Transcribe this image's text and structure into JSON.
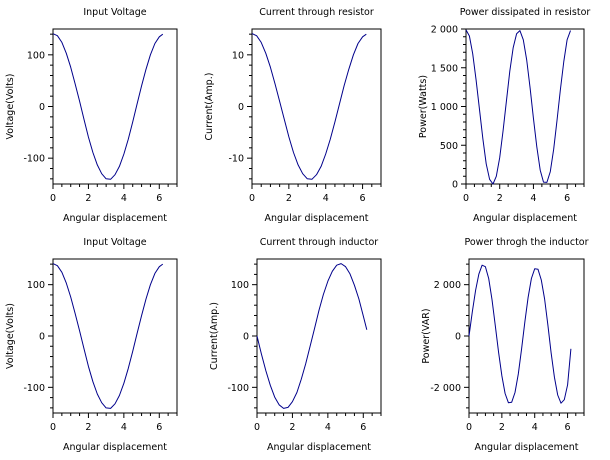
{
  "chart_data": [
    {
      "type": "line",
      "title": "Input Voltage",
      "xlabel": "Angular displacement",
      "ylabel": "Voltage(Volts)",
      "xlim": [
        0,
        7
      ],
      "ylim": [
        -150,
        150
      ],
      "xticks": [
        0,
        2,
        4,
        6
      ],
      "xtick_labels": [
        "0",
        "2",
        "4",
        "6"
      ],
      "yticks": [
        -100,
        0,
        100
      ],
      "ytick_labels": [
        "-100",
        "0",
        "100"
      ],
      "series_color": "#00008b",
      "series": [
        {
          "x": [
            0,
            0.25,
            0.5,
            0.75,
            1,
            1.25,
            1.5,
            1.75,
            2,
            2.25,
            2.5,
            2.75,
            3,
            3.25,
            3.5,
            3.75,
            4,
            4.25,
            4.5,
            4.75,
            5,
            5.25,
            5.5,
            5.75,
            6,
            6.2
          ],
          "y": [
            141,
            137,
            124,
            103,
            76,
            44,
            10,
            -25,
            -59,
            -89,
            -113,
            -130,
            -140,
            -141,
            -132,
            -116,
            -92,
            -63,
            -30,
            5,
            40,
            72,
            100,
            122,
            135,
            140
          ]
        }
      ]
    },
    {
      "type": "line",
      "title": "Current through resistor",
      "xlabel": "Angular displacement",
      "ylabel": "Current(Amp.)",
      "xlim": [
        0,
        7
      ],
      "ylim": [
        -15,
        15
      ],
      "xticks": [
        0,
        2,
        4,
        6
      ],
      "xtick_labels": [
        "0",
        "2",
        "4",
        "6"
      ],
      "yticks": [
        -10,
        0,
        10
      ],
      "ytick_labels": [
        "-10",
        "0",
        "10"
      ],
      "series_color": "#00008b",
      "series": [
        {
          "x": [
            0,
            0.25,
            0.5,
            0.75,
            1,
            1.25,
            1.5,
            1.75,
            2,
            2.25,
            2.5,
            2.75,
            3,
            3.25,
            3.5,
            3.75,
            4,
            4.25,
            4.5,
            4.75,
            5,
            5.25,
            5.5,
            5.75,
            6,
            6.2
          ],
          "y": [
            14.1,
            13.7,
            12.4,
            10.3,
            7.6,
            4.4,
            1.0,
            -2.5,
            -5.9,
            -8.9,
            -11.3,
            -13.0,
            -14.0,
            -14.1,
            -13.2,
            -11.6,
            -9.2,
            -6.3,
            -3.0,
            0.5,
            4.0,
            7.2,
            10.0,
            12.2,
            13.5,
            14.0
          ]
        }
      ]
    },
    {
      "type": "line",
      "title": "Power dissipated in resistor",
      "xlabel": "Angular displacement",
      "ylabel": "Power(Watts)",
      "xlim": [
        0,
        7
      ],
      "ylim": [
        0,
        2000
      ],
      "xticks": [
        0,
        2,
        4,
        6
      ],
      "xtick_labels": [
        "0",
        "2",
        "4",
        "6"
      ],
      "yticks": [
        0,
        500,
        1000,
        1500,
        2000
      ],
      "ytick_labels": [
        "0",
        "500",
        "1 000",
        "1 500",
        "2 000"
      ],
      "series_color": "#00008b",
      "series": [
        {
          "x": [
            0,
            0.2,
            0.4,
            0.6,
            0.8,
            1.0,
            1.2,
            1.4,
            1.6,
            1.8,
            2.0,
            2.2,
            2.4,
            2.6,
            2.8,
            3.0,
            3.2,
            3.4,
            3.6,
            3.8,
            4.0,
            4.2,
            4.4,
            4.6,
            4.8,
            5.0,
            5.2,
            5.4,
            5.6,
            5.8,
            6.0,
            6.2
          ],
          "y": [
            1988,
            1910,
            1681,
            1340,
            960,
            580,
            260,
            60,
            0,
            100,
            340,
            690,
            1080,
            1455,
            1760,
            1940,
            1980,
            1860,
            1600,
            1240,
            850,
            480,
            180,
            25,
            20,
            160,
            450,
            820,
            1220,
            1580,
            1860,
            1980
          ]
        }
      ]
    },
    {
      "type": "line",
      "title": "Input Voltage",
      "xlabel": "Angular displacement",
      "ylabel": "Voltage(Volts)",
      "xlim": [
        0,
        7
      ],
      "ylim": [
        -150,
        150
      ],
      "xticks": [
        0,
        2,
        4,
        6
      ],
      "xtick_labels": [
        "0",
        "2",
        "4",
        "6"
      ],
      "yticks": [
        -100,
        0,
        100
      ],
      "ytick_labels": [
        "-100",
        "0",
        "100"
      ],
      "series_color": "#00008b",
      "series": [
        {
          "x": [
            0,
            0.25,
            0.5,
            0.75,
            1,
            1.25,
            1.5,
            1.75,
            2,
            2.25,
            2.5,
            2.75,
            3,
            3.25,
            3.5,
            3.75,
            4,
            4.25,
            4.5,
            4.75,
            5,
            5.25,
            5.5,
            5.75,
            6,
            6.2
          ],
          "y": [
            141,
            137,
            124,
            103,
            76,
            44,
            10,
            -25,
            -59,
            -89,
            -113,
            -130,
            -140,
            -141,
            -132,
            -116,
            -92,
            -63,
            -30,
            5,
            40,
            72,
            100,
            122,
            135,
            140
          ]
        }
      ]
    },
    {
      "type": "line",
      "title": "Current through inductor",
      "xlabel": "Angular displacement",
      "ylabel": "Current(Amp.)",
      "xlim": [
        0,
        7
      ],
      "ylim": [
        -150,
        150
      ],
      "xticks": [
        0,
        2,
        4,
        6
      ],
      "xtick_labels": [
        "0",
        "2",
        "4",
        "6"
      ],
      "yticks": [
        -100,
        0,
        100
      ],
      "ytick_labels": [
        "-100",
        "0",
        "100"
      ],
      "series_color": "#00008b",
      "series": [
        {
          "x": [
            0,
            0.25,
            0.5,
            0.75,
            1,
            1.25,
            1.5,
            1.75,
            2,
            2.25,
            2.5,
            2.75,
            3,
            3.25,
            3.5,
            3.75,
            4,
            4.25,
            4.5,
            4.75,
            5,
            5.25,
            5.5,
            5.75,
            6,
            6.2
          ],
          "y": [
            0,
            -35,
            -68,
            -96,
            -119,
            -134,
            -141,
            -139,
            -128,
            -110,
            -84,
            -54,
            -20,
            15,
            50,
            81,
            107,
            126,
            138,
            141,
            135,
            121,
            99,
            72,
            39,
            12
          ]
        }
      ]
    },
    {
      "type": "line",
      "title": "Power throgh the inductor",
      "xlabel": "Angular displacement",
      "ylabel": "Power(VAR)",
      "xlim": [
        0,
        7
      ],
      "ylim": [
        -3000,
        3000
      ],
      "xticks": [
        0,
        2,
        4,
        6
      ],
      "xtick_labels": [
        "0",
        "2",
        "4",
        "6"
      ],
      "yticks": [
        -2000,
        0,
        2000
      ],
      "ytick_labels": [
        "-2 000",
        "0",
        "2 000"
      ],
      "series_color": "#00008b",
      "series": [
        {
          "x": [
            0,
            0.2,
            0.4,
            0.6,
            0.8,
            1.0,
            1.2,
            1.4,
            1.6,
            1.8,
            2.0,
            2.2,
            2.4,
            2.6,
            2.8,
            3.0,
            3.2,
            3.4,
            3.6,
            3.8,
            4.0,
            4.2,
            4.4,
            4.6,
            4.8,
            5.0,
            5.2,
            5.4,
            5.6,
            5.8,
            6.0,
            6.2
          ],
          "y": [
            0,
            940,
            1780,
            2420,
            2760,
            2700,
            2240,
            1420,
            400,
            -640,
            -1560,
            -2240,
            -2600,
            -2580,
            -2200,
            -1480,
            -500,
            560,
            1500,
            2240,
            2620,
            2600,
            2180,
            1440,
            420,
            -650,
            -1600,
            -2300,
            -2620,
            -2480,
            -1900,
            -500
          ]
        }
      ]
    }
  ]
}
